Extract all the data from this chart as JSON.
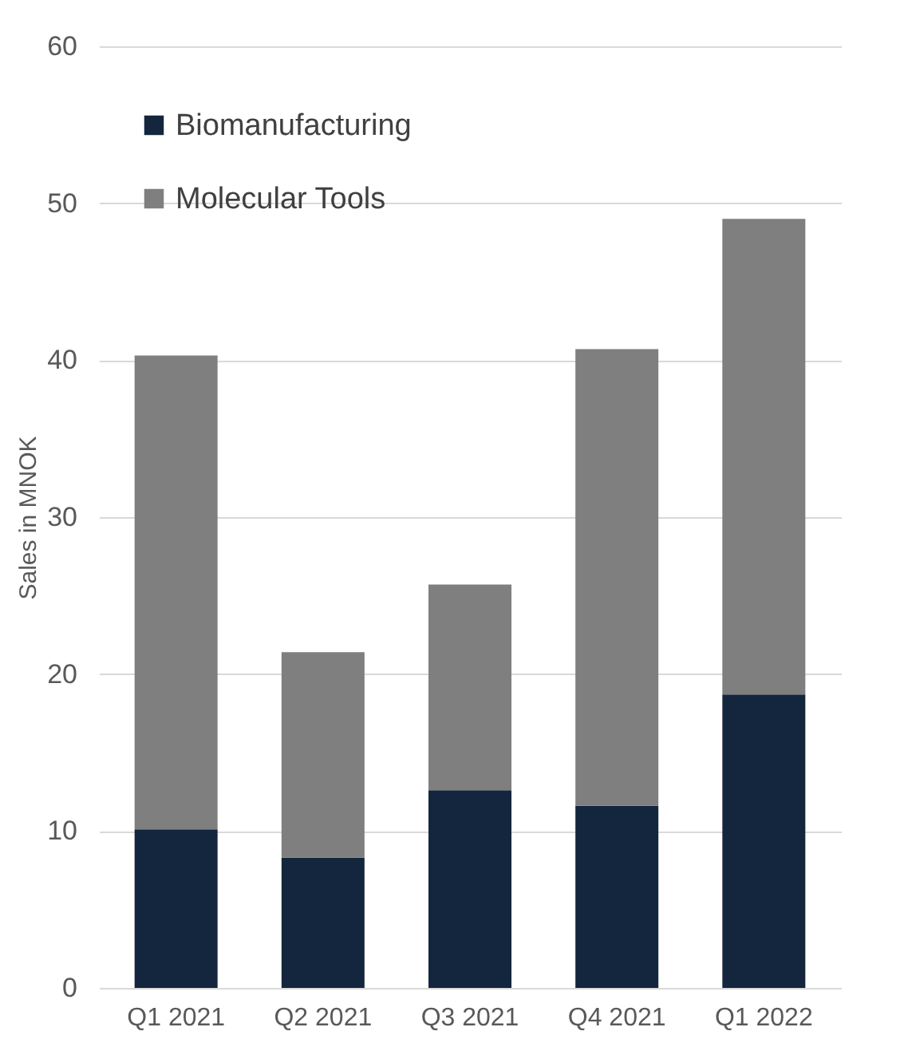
{
  "chart_data": {
    "type": "bar",
    "stacked": true,
    "ylabel": "Sales in MNOK",
    "categories": [
      "Q1 2021",
      "Q2 2021",
      "Q3 2021",
      "Q4 2021",
      "Q1 2022"
    ],
    "series": [
      {
        "name": "Biomanufacturing",
        "color": "#14263d",
        "values": [
          10.1,
          8.3,
          12.6,
          11.6,
          18.7
        ]
      },
      {
        "name": "Molecular Tools",
        "color": "#7f7f7f",
        "values": [
          30.2,
          13.1,
          13.1,
          29.1,
          30.3
        ]
      }
    ],
    "ylim": [
      0,
      60
    ],
    "yticks": [
      0,
      10,
      20,
      30,
      40,
      50,
      60
    ],
    "grid": "y",
    "legend": "top left"
  }
}
